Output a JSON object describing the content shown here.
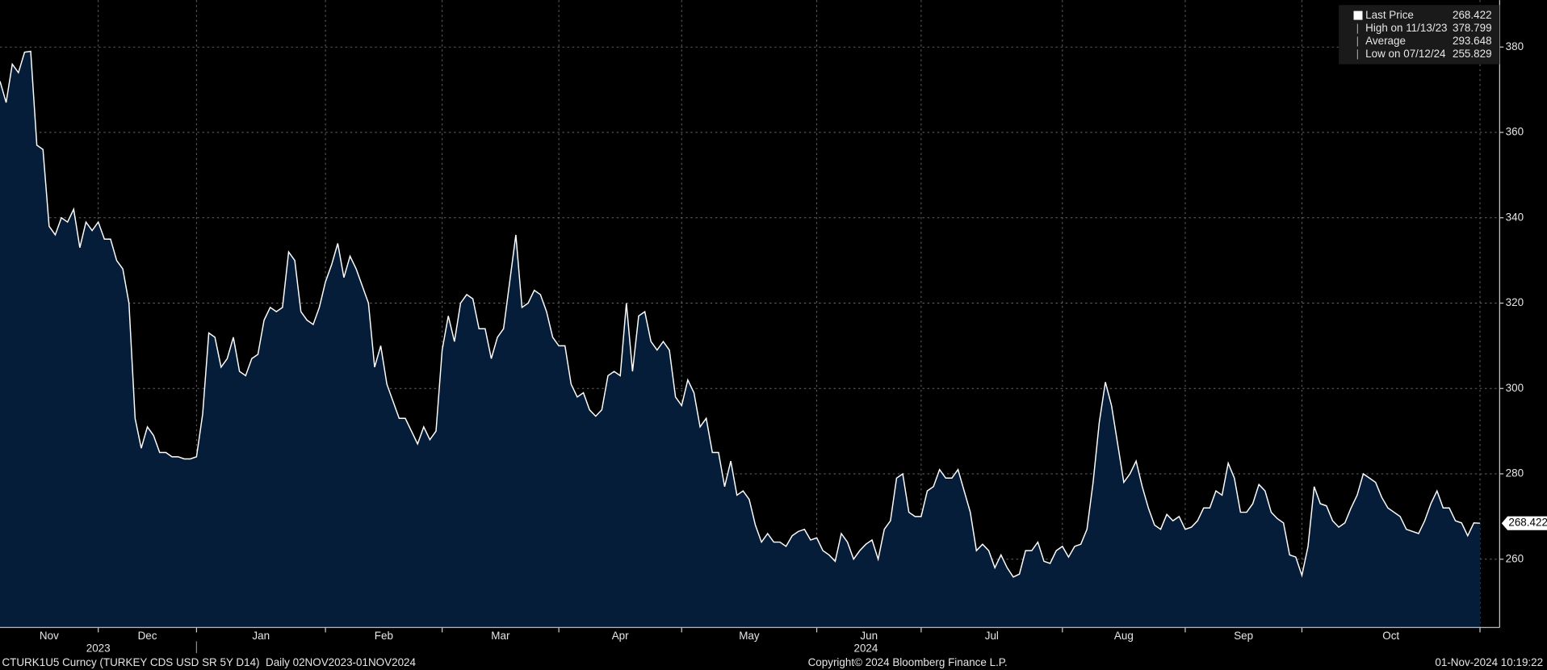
{
  "chart_data": {
    "type": "line",
    "series": [
      {
        "name": "Last Price",
        "color": "#ffffff",
        "fill": "#061d3a",
        "values": [
          372,
          367,
          376,
          374,
          378.799,
          379,
          357,
          356,
          338,
          336,
          340,
          339,
          342,
          333,
          339,
          337,
          339,
          335,
          335,
          330,
          328,
          320,
          293,
          286,
          291,
          289,
          285,
          285,
          284,
          284,
          283.5,
          283.5,
          284,
          294,
          313,
          312,
          305,
          307,
          312,
          304,
          303,
          307,
          308,
          316,
          319,
          318,
          319,
          332,
          330,
          318,
          316,
          315,
          319,
          325,
          329,
          334,
          326,
          331,
          328,
          324,
          320,
          305,
          310,
          301,
          297,
          293,
          293,
          290,
          287,
          291,
          288,
          290,
          309,
          317,
          311,
          320,
          322,
          321,
          314,
          314,
          307,
          312,
          314,
          325,
          336,
          319,
          320,
          323,
          322,
          318,
          312,
          310,
          310,
          301,
          298,
          299,
          295,
          293.5,
          295,
          303,
          304,
          303,
          320,
          304,
          317,
          318,
          311,
          309,
          311,
          309,
          298,
          296,
          302,
          299,
          291,
          293,
          285,
          285,
          277,
          283,
          275,
          276,
          274,
          268,
          264,
          266,
          264,
          264,
          263,
          265.5,
          266.5,
          267,
          264.5,
          265,
          262,
          261,
          259.5,
          266,
          264,
          260,
          262,
          263.5,
          264.5,
          260,
          267,
          269,
          279,
          280,
          271,
          270,
          270,
          276,
          277,
          281,
          279,
          279,
          281,
          276,
          271,
          262,
          263.5,
          262,
          258,
          261,
          258,
          255.829,
          256.5,
          262,
          262,
          264,
          259.5,
          259,
          262,
          263,
          260.5,
          263,
          263.5,
          267,
          278,
          292,
          301.5,
          296,
          287,
          278,
          280,
          283,
          277,
          272,
          268,
          267,
          270.5,
          269,
          270,
          267,
          267.5,
          269,
          272,
          272,
          276,
          275,
          282.5,
          279,
          271,
          271,
          273,
          277.5,
          276,
          271,
          269.5,
          268.5,
          261,
          260.5,
          256.2,
          263,
          277,
          273,
          272.5,
          269,
          267.5,
          268.5,
          272,
          275,
          280,
          279,
          278,
          274.5,
          272,
          271,
          270,
          267,
          266.5,
          266,
          269,
          273,
          276,
          272,
          272,
          269,
          268.5,
          265.5,
          268.5,
          268.422
        ]
      }
    ],
    "xlim": [
      0,
      244.2
    ],
    "xticks": [
      16,
      32,
      53,
      72,
      91,
      111,
      133,
      150,
      173,
      193,
      212,
      241
    ],
    "month_labels": [
      {
        "value": 8,
        "label": "Nov"
      },
      {
        "value": 24,
        "label": "Dec"
      },
      {
        "value": 42.5,
        "label": "Jan"
      },
      {
        "value": 62.5,
        "label": "Feb"
      },
      {
        "value": 81.5,
        "label": "Mar"
      },
      {
        "value": 101,
        "label": "Apr"
      },
      {
        "value": 122,
        "label": "May"
      },
      {
        "value": 141.5,
        "label": "Jun"
      },
      {
        "value": 161.5,
        "label": "Jul"
      },
      {
        "value": 183,
        "label": "Aug"
      },
      {
        "value": 202.5,
        "label": "Sep"
      },
      {
        "value": 226.5,
        "label": "Oct"
      }
    ],
    "year_labels": [
      {
        "value": 16,
        "label": "2023"
      },
      {
        "value": 141,
        "label": "2024"
      }
    ],
    "ylim": [
      244,
      391
    ],
    "yticks": [
      260,
      280,
      300,
      320,
      340,
      360,
      380
    ],
    "grid": true,
    "legend": [
      {
        "label": "Last Price",
        "value": 268.422
      },
      {
        "label": "High on 11/13/23",
        "value": 378.799
      },
      {
        "label": "Average",
        "value": 293.648
      },
      {
        "label": "Low on 07/12/24",
        "value": 255.829
      }
    ],
    "footer_left": "CTURK1U5 Curncy (TURKEY CDS USD SR 5Y D14)  Daily 02NOV2023-01NOV2024",
    "footer_center": "Copyright© 2024 Bloomberg Finance L.P.",
    "footer_right": "01-Nov-2024 10:19:22"
  }
}
